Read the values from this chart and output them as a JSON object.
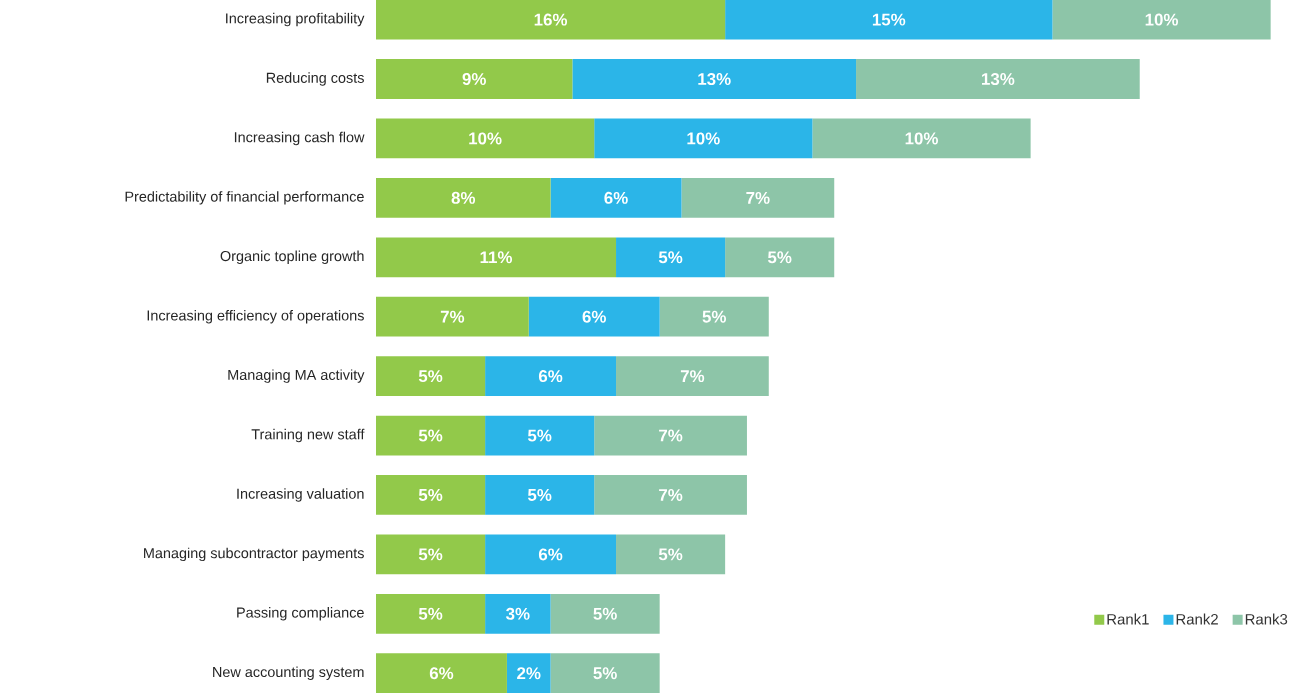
{
  "chart_data": {
    "type": "bar",
    "orientation": "horizontal",
    "stacked": true,
    "legend": "bottom right",
    "categories": [
      "Increasing profitability",
      "Reducing costs",
      "Increasing cash flow",
      "Predictability of financial performance",
      "Organic topline growth",
      "Increasing efficiency of operations",
      "Managing MA activity",
      "Training new staff",
      "Increasing valuation",
      "Managing subcontractor payments",
      "Passing compliance",
      "New accounting system"
    ],
    "series": [
      {
        "name": "Rank1",
        "color": "#92c94a",
        "values": [
          16,
          9,
          10,
          8,
          11,
          7,
          5,
          5,
          5,
          5,
          5,
          6
        ],
        "value_labels": [
          "16%",
          "9%",
          "10%",
          "8%",
          "11%",
          "7%",
          "5%",
          "5%",
          "5%",
          "5%",
          "5%",
          "6%"
        ]
      },
      {
        "name": "Rank2",
        "color": "#2bb5e8",
        "values": [
          15,
          13,
          10,
          6,
          5,
          6,
          6,
          5,
          5,
          6,
          3,
          2
        ],
        "value_labels": [
          "15%",
          "13%",
          "10%",
          "6%",
          "5%",
          "6%",
          "6%",
          "5%",
          "5%",
          "6%",
          "3%",
          "2%"
        ]
      },
      {
        "name": "Rank3",
        "color": "#8dc5a8",
        "values": [
          10,
          13,
          10,
          7,
          5,
          5,
          7,
          7,
          7,
          5,
          5,
          5
        ],
        "value_labels": [
          "10%",
          "13%",
          "10%",
          "7%",
          "5%",
          "5%",
          "7%",
          "7%",
          "7%",
          "5%",
          "5%",
          "5%"
        ]
      }
    ]
  }
}
